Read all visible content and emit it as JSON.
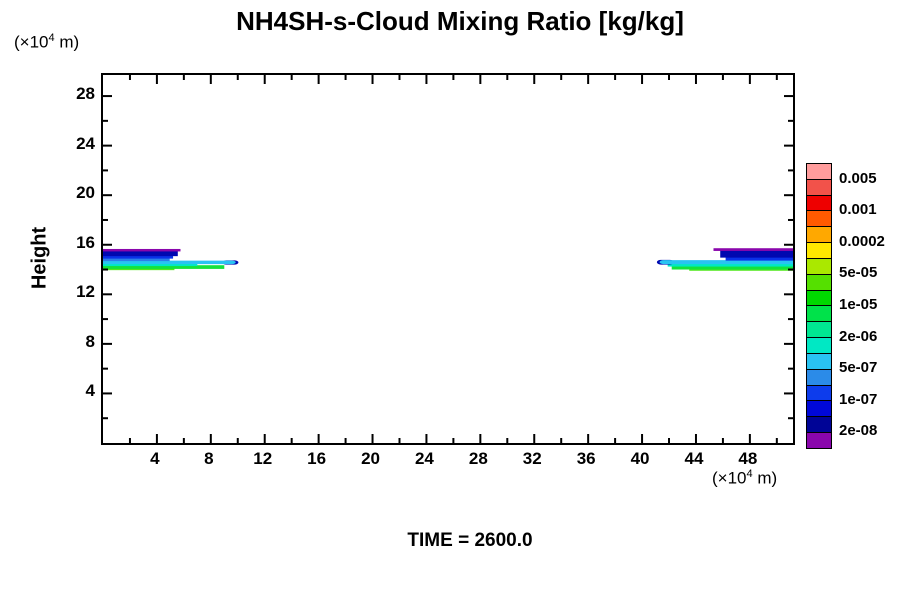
{
  "header": {
    "title": "NH4SH-s-Cloud Mixing Ratio [kg/kg]"
  },
  "footer": {
    "time_label": "TIME = 2600.0"
  },
  "chart_data": {
    "type": "filled-contour",
    "title": "NH4SH-s-Cloud Mixing Ratio [kg/kg]",
    "time": 2600.0,
    "x_axis": {
      "unit": {
        "prefix": "(×10",
        "sup": "4",
        "suffix": " m)"
      },
      "range": [
        0,
        51.2
      ],
      "major_ticks": [
        4,
        8,
        12,
        16,
        20,
        24,
        28,
        32,
        36,
        40,
        44,
        48
      ],
      "minor_ticks": [
        2,
        6,
        10,
        14,
        18,
        22,
        26,
        30,
        34,
        38,
        42,
        46,
        50
      ]
    },
    "y_axis": {
      "label": "Height",
      "unit": {
        "prefix": "(×10",
        "sup": "4",
        "suffix": " m)"
      },
      "range": [
        0,
        29.7
      ],
      "major_ticks": [
        4,
        8,
        12,
        16,
        20,
        24,
        28
      ],
      "minor_ticks": [
        2,
        6,
        10,
        14,
        18,
        22,
        26,
        30
      ]
    },
    "legend": {
      "tick_labels": [
        "0.005",
        "0.001",
        "0.0002",
        "5e-05",
        "1e-05",
        "2e-06",
        "5e-07",
        "1e-07",
        "2e-08"
      ],
      "label_boundary_cells": [
        1,
        3,
        5,
        7,
        9,
        11,
        13,
        15,
        17
      ],
      "cell_colors": [
        "#FF9C9C",
        "#F2524A",
        "#EE0000",
        "#FF5A00",
        "#FFA800",
        "#FFE800",
        "#AAE800",
        "#55E000",
        "#00D800",
        "#00E24A",
        "#00E792",
        "#00E8C4",
        "#29C3F2",
        "#2B8BE8",
        "#0D3CEC",
        "#0008D8",
        "#000496",
        "#8A06AC"
      ]
    },
    "band_colors": {
      "purple": "#8A06AC",
      "navy": "#0008B0",
      "blue": "#0A30E8",
      "dodger": "#2B7FE8",
      "cyan": "#29C3F2",
      "turquoise": "#00E8C4",
      "spring": "#00E792",
      "green": "#15E23C",
      "lightgreen": "#52E81E"
    },
    "clouds": [
      {
        "name": "left-cloud",
        "bands": [
          {
            "c": "lightgreen",
            "x": [
              0,
              5.3
            ],
            "y": [
              13.95,
              14.15
            ]
          },
          {
            "c": "green",
            "x": [
              0,
              9.0
            ],
            "y": [
              14.05,
              14.35
            ]
          },
          {
            "c": "turquoise",
            "x": [
              0,
              7.0
            ],
            "y": [
              14.28,
              14.52
            ]
          },
          {
            "c": "navy",
            "x": [
              9.45,
              10.05
            ],
            "y": [
              14.4,
              14.74
            ],
            "tip": "right"
          },
          {
            "c": "cyan",
            "x": [
              0,
              9.85
            ],
            "y": [
              14.44,
              14.72
            ],
            "tip": "right"
          },
          {
            "c": "dodger",
            "x": [
              0,
              4.95
            ],
            "y": [
              14.68,
              14.92
            ]
          },
          {
            "c": "blue",
            "x": [
              0,
              5.2
            ],
            "y": [
              14.88,
              15.14
            ]
          },
          {
            "c": "navy",
            "x": [
              0,
              5.55
            ],
            "y": [
              15.08,
              15.52
            ]
          },
          {
            "c": "purple",
            "x": [
              0,
              5.75
            ],
            "y": [
              15.46,
              15.66
            ]
          }
        ]
      },
      {
        "name": "right-cloud",
        "bands": [
          {
            "c": "lightgreen",
            "x": [
              43.5,
              51.2
            ],
            "y": [
              13.9,
              14.1
            ]
          },
          {
            "c": "green",
            "x": [
              42.2,
              51.2
            ],
            "y": [
              14.0,
              14.32
            ]
          },
          {
            "c": "turquoise",
            "x": [
              41.9,
              51.2
            ],
            "y": [
              14.24,
              14.5
            ]
          },
          {
            "c": "navy",
            "x": [
              41.1,
              41.75
            ],
            "y": [
              14.4,
              14.78
            ],
            "tip": "left"
          },
          {
            "c": "cyan",
            "x": [
              41.3,
              51.2
            ],
            "y": [
              14.44,
              14.76
            ],
            "tip": "left"
          },
          {
            "c": "blue",
            "x": [
              46.2,
              51.2
            ],
            "y": [
              14.72,
              15.02
            ]
          },
          {
            "c": "navy",
            "x": [
              45.8,
              51.2
            ],
            "y": [
              14.96,
              15.58
            ]
          },
          {
            "c": "purple",
            "x": [
              45.3,
              51.2
            ],
            "y": [
              15.5,
              15.72
            ]
          }
        ]
      }
    ]
  }
}
